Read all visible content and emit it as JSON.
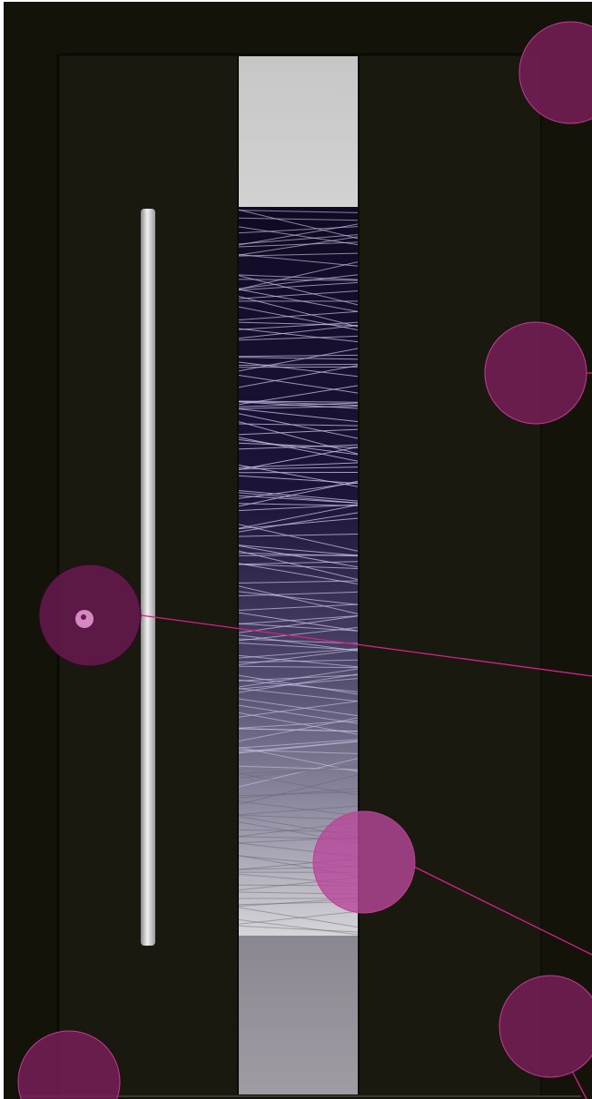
{
  "product": {
    "type": "front-door",
    "handle": "vertical-bar-handle",
    "glazing": "decorative-glass-strip"
  },
  "colors": {
    "door_frame": "#13130a",
    "door_leaf": "#1a190f",
    "handle_metal": "#cfcfcf",
    "glass_top": "#c9c9c9",
    "glass_dark": "#120a24",
    "glass_bottom": "#8e8a94",
    "hotspot_fill": "#7a1f5c",
    "hotspot_stroke": "#c23d8f",
    "hotspot_line": "#d6208c"
  },
  "hotspots": [
    {
      "name": "hotspot-frame-top-right"
    },
    {
      "name": "hotspot-door-leaf"
    },
    {
      "name": "hotspot-lock-cylinder"
    },
    {
      "name": "hotspot-glass-pattern"
    },
    {
      "name": "hotspot-threshold-right"
    },
    {
      "name": "hotspot-threshold-left"
    }
  ]
}
